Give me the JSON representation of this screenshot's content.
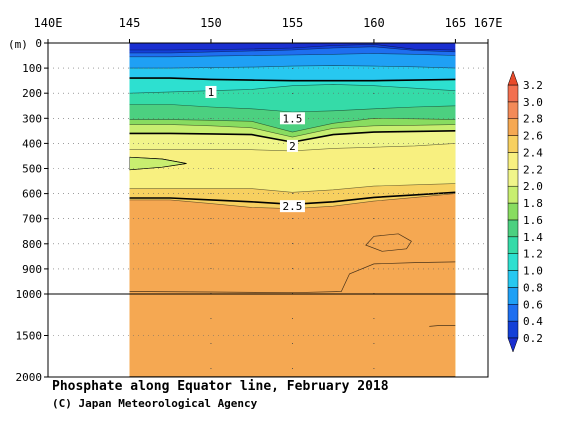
{
  "chart_data": {
    "type": "heatmap",
    "title": "Phosphate along Equator line, February 2018",
    "credit": "(C) Japan Meteorological Agency",
    "x_axis": {
      "tick_labels": [
        "140E",
        "145",
        "150",
        "155",
        "160",
        "165",
        "167E"
      ],
      "tick_values": [
        140,
        145,
        150,
        155,
        160,
        165,
        167
      ],
      "range": [
        140,
        167
      ]
    },
    "y_axis": {
      "unit_label": "(m)",
      "upper_tick_labels": [
        "0",
        "100",
        "200",
        "300",
        "400",
        "500",
        "600",
        "700",
        "800",
        "900",
        "1000"
      ],
      "upper_tick_values": [
        0,
        100,
        200,
        300,
        400,
        500,
        600,
        700,
        800,
        900,
        1000
      ],
      "lower_tick_labels": [
        "1500",
        "2000"
      ],
      "lower_tick_values": [
        1500,
        2000
      ],
      "range": [
        0,
        2000
      ],
      "scale_break_depth": 1000
    },
    "data_extent": {
      "lon": [
        145,
        165
      ],
      "depth": [
        0,
        2000
      ]
    },
    "contour_labels": [
      {
        "text": "1",
        "lon": 150.0,
        "depth": 195
      },
      {
        "text": "1.5",
        "lon": 155.0,
        "depth": 300
      },
      {
        "text": "2",
        "lon": 155.0,
        "depth": 410
      },
      {
        "text": "2.5",
        "lon": 155.0,
        "depth": 650
      }
    ],
    "layer_boundaries": [
      {
        "value": 0.2,
        "depth": [
          28,
          28,
          26,
          24,
          20,
          10,
          5,
          25,
          28
        ]
      },
      {
        "value": 0.4,
        "depth": [
          40,
          40,
          36,
          32,
          28,
          20,
          15,
          30,
          35
        ]
      },
      {
        "value": 0.6,
        "depth": [
          55,
          55,
          52,
          50,
          48,
          45,
          42,
          45,
          50
        ]
      },
      {
        "value": 0.8,
        "depth": [
          100,
          100,
          98,
          96,
          92,
          90,
          92,
          95,
          100
        ]
      },
      {
        "value": 1.0,
        "depth": [
          140,
          140,
          145,
          148,
          150,
          150,
          150,
          148,
          145
        ]
      },
      {
        "value": 1.2,
        "depth": [
          200,
          195,
          190,
          185,
          170,
          165,
          170,
          180,
          190
        ]
      },
      {
        "value": 1.4,
        "depth": [
          245,
          245,
          255,
          262,
          275,
          270,
          262,
          255,
          250
        ]
      },
      {
        "value": 1.6,
        "depth": [
          305,
          305,
          308,
          312,
          355,
          320,
          300,
          302,
          305
        ]
      },
      {
        "value": 1.8,
        "depth": [
          325,
          325,
          330,
          338,
          375,
          340,
          330,
          328,
          325
        ]
      },
      {
        "value": 2.0,
        "depth": [
          360,
          360,
          362,
          365,
          395,
          365,
          355,
          352,
          350
        ]
      },
      {
        "value": 2.2,
        "depth": [
          425,
          425,
          425,
          425,
          430,
          420,
          415,
          410,
          400
        ]
      },
      {
        "value": 2.4,
        "depth": [
          580,
          580,
          580,
          580,
          595,
          585,
          570,
          565,
          560
        ]
      },
      {
        "value": 2.6,
        "depth": [
          625,
          625,
          640,
          655,
          660,
          650,
          630,
          615,
          600
        ]
      },
      {
        "value": 2.8,
        "depth": [
          2000,
          2000,
          2000,
          2000,
          2000,
          2000,
          2000,
          2000,
          2000
        ]
      }
    ],
    "boundary_lons": [
      145,
      147.5,
      150,
      152.5,
      155,
      157.5,
      160,
      162.5,
      165
    ],
    "extra_contours": [
      {
        "value": 2.2,
        "points": [
          [
            145,
            505
          ],
          [
            147,
            495
          ],
          [
            148.5,
            480
          ],
          [
            147,
            462
          ],
          [
            145,
            455
          ]
        ]
      },
      {
        "value": 2.7,
        "points": [
          [
            160,
            770
          ],
          [
            161.5,
            760
          ],
          [
            162.3,
            790
          ],
          [
            162,
            820
          ],
          [
            160.5,
            830
          ],
          [
            159.5,
            805
          ],
          [
            160,
            770
          ]
        ]
      },
      {
        "value": 2.7,
        "points": [
          [
            145,
            990
          ],
          [
            150,
            992
          ],
          [
            155,
            995
          ],
          [
            158,
            990
          ],
          [
            158.5,
            920
          ],
          [
            160,
            880
          ],
          [
            162.5,
            875
          ],
          [
            165,
            872
          ]
        ]
      },
      {
        "value": 2.7,
        "points": [
          [
            163.4,
            1390
          ],
          [
            164,
            1380
          ],
          [
            165,
            1380
          ]
        ]
      },
      {
        "value": 2.7,
        "points": [
          [
            145,
            1995
          ],
          [
            155,
            1995
          ],
          [
            165,
            1995
          ]
        ]
      }
    ],
    "colorbar": {
      "tick_labels": [
        "0.2",
        "0.4",
        "0.6",
        "0.8",
        "1.0",
        "1.2",
        "1.4",
        "1.6",
        "1.8",
        "2.0",
        "2.2",
        "2.4",
        "2.6",
        "2.8",
        "3.0",
        "3.2"
      ],
      "levels": [
        0.2,
        0.4,
        0.6,
        0.8,
        1.0,
        1.2,
        1.4,
        1.6,
        1.8,
        2.0,
        2.2,
        2.4,
        2.6,
        2.8,
        3.0,
        3.2
      ],
      "colors": [
        "#1340d8",
        "#1e6ff0",
        "#1fa0f5",
        "#27c8f0",
        "#2de0d0",
        "#35dba8",
        "#4cd080",
        "#88dc60",
        "#c8ee70",
        "#f0f58a",
        "#f8f080",
        "#f7d060",
        "#f5a852",
        "#f38a58",
        "#f27050",
        "#ee5535"
      ],
      "under_color": "#1a2fd0",
      "over_color": "#e84a2a"
    },
    "grid": "dotted",
    "missing_region_color": "#ffffff"
  }
}
